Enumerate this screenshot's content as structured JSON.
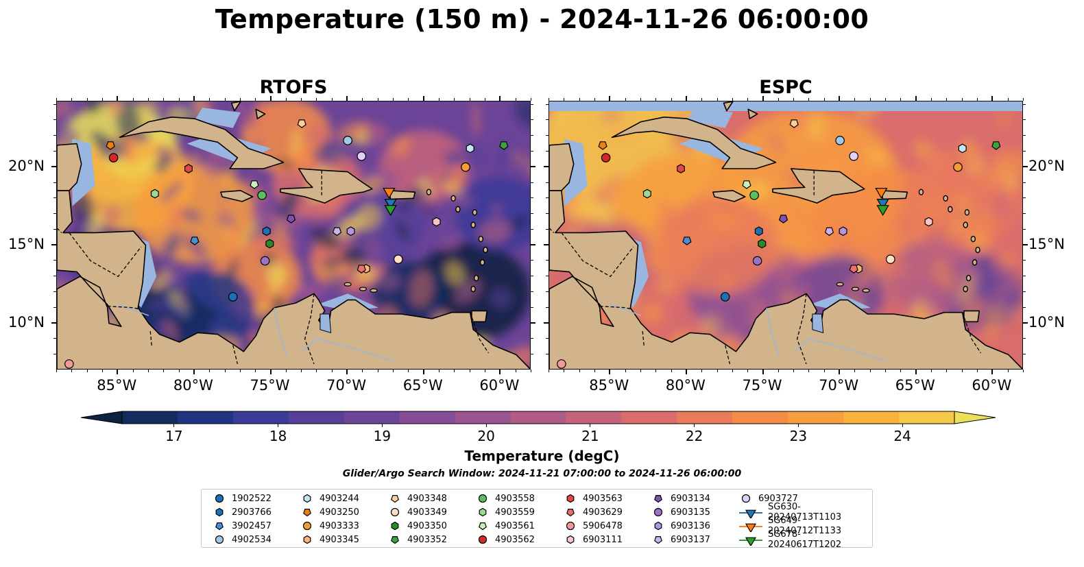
{
  "title": "Temperature (150 m) - 2024-11-26 06:00:00",
  "panels": [
    {
      "id": "rtofs",
      "title": "RTOFS"
    },
    {
      "id": "espc",
      "title": "ESPC"
    }
  ],
  "axes": {
    "lon_range": [
      -89,
      -58
    ],
    "lat_range": [
      7,
      24.2
    ],
    "lon_ticks": [
      "85°W",
      "80°W",
      "75°W",
      "70°W",
      "65°W",
      "60°W"
    ],
    "lon_tick_values": [
      -85,
      -80,
      -75,
      -70,
      -65,
      -60
    ],
    "lat_ticks": [
      "20°N",
      "15°N",
      "10°N"
    ],
    "lat_tick_values": [
      20,
      15,
      10
    ]
  },
  "colorbar": {
    "title": "Temperature (degC)",
    "min": 16.6,
    "max": 24.6,
    "labels": [
      "17",
      "18",
      "19",
      "20",
      "21",
      "22",
      "23",
      "24"
    ],
    "label_values": [
      17,
      18,
      19,
      20,
      21,
      22,
      23,
      24
    ],
    "extend": "both",
    "colors": [
      "#0c2240",
      "#132c5e",
      "#1f3582",
      "#3a3b96",
      "#563e99",
      "#6c4498",
      "#844d96",
      "#9a5591",
      "#b05c88",
      "#c5637a",
      "#d96c6c",
      "#ea7a5c",
      "#f48c48",
      "#f89e3e",
      "#f9b23c",
      "#f5c84a",
      "#eae05a"
    ]
  },
  "search_window": "Glider/Argo Search Window: 2024-11-21 07:00:00 to 2024-11-26 06:00:00",
  "land_color": "#d2b48c",
  "shallow_color": "#98b6e0",
  "legend": [
    {
      "label": "1902522",
      "marker": "circle",
      "color": "#1f6fb4"
    },
    {
      "label": "2903766",
      "marker": "hexagon",
      "color": "#1f6fb4"
    },
    {
      "label": "3902457",
      "marker": "pentagon",
      "color": "#4a90d0"
    },
    {
      "label": "4902534",
      "marker": "circle",
      "color": "#9ecae8"
    },
    {
      "label": "4903244",
      "marker": "hexagon",
      "color": "#c6e4f5"
    },
    {
      "label": "4903250",
      "marker": "pentagon",
      "color": "#f07f12"
    },
    {
      "label": "4903333",
      "marker": "circle",
      "color": "#f59a36"
    },
    {
      "label": "4903345",
      "marker": "hexagon",
      "color": "#f8b874"
    },
    {
      "label": "4903348",
      "marker": "pentagon",
      "color": "#fbcf9a"
    },
    {
      "label": "4903349",
      "marker": "circle",
      "color": "#fde0c2"
    },
    {
      "label": "4903350",
      "marker": "hexagon",
      "color": "#2a8a2a"
    },
    {
      "label": "4903352",
      "marker": "pentagon",
      "color": "#3ea33e"
    },
    {
      "label": "4903558",
      "marker": "circle",
      "color": "#5cbf5c"
    },
    {
      "label": "4903559",
      "marker": "hexagon",
      "color": "#9ad98f"
    },
    {
      "label": "4903561",
      "marker": "pentagon",
      "color": "#c7f0bd"
    },
    {
      "label": "4903562",
      "marker": "circle",
      "color": "#d62728"
    },
    {
      "label": "4903563",
      "marker": "hexagon",
      "color": "#e04848"
    },
    {
      "label": "4903629",
      "marker": "pentagon",
      "color": "#ec6e6e"
    },
    {
      "label": "5906478",
      "marker": "circle",
      "color": "#f29a9a"
    },
    {
      "label": "6903111",
      "marker": "hexagon",
      "color": "#f8c4c4"
    },
    {
      "label": "6903134",
      "marker": "pentagon",
      "color": "#7e52b0"
    },
    {
      "label": "6903135",
      "marker": "circle",
      "color": "#9a72c8"
    },
    {
      "label": "6903136",
      "marker": "hexagon",
      "color": "#b595db"
    },
    {
      "label": "6903137",
      "marker": "pentagon",
      "color": "#cdb2ea"
    },
    {
      "label": "6903727",
      "marker": "circle",
      "color": "#e3d0f7"
    },
    {
      "label": "SG630-20240713T1103",
      "marker": "triangle-line",
      "color": "#1f77b4"
    },
    {
      "label": "SG649-20240712T1133",
      "marker": "triangle-line",
      "color": "#ff7f0e"
    },
    {
      "label": "SG678-20240617T1202",
      "marker": "triangle-line",
      "color": "#2ca02c"
    }
  ],
  "floats": [
    {
      "id": "1902522",
      "lon": -77.5,
      "lat": 11.7
    },
    {
      "id": "2903766",
      "lon": -75.3,
      "lat": 15.9
    },
    {
      "id": "3902457",
      "lon": -80.0,
      "lat": 15.3
    },
    {
      "id": "4902534",
      "lon": -70.0,
      "lat": 21.7
    },
    {
      "id": "4903244",
      "lon": -62.0,
      "lat": 21.2
    },
    {
      "id": "4903250",
      "lon": -85.5,
      "lat": 21.4
    },
    {
      "id": "4903333",
      "lon": -62.3,
      "lat": 20.0
    },
    {
      "id": "4903345",
      "lon": -68.8,
      "lat": 13.5
    },
    {
      "id": "4903348",
      "lon": -73.0,
      "lat": 22.8
    },
    {
      "id": "4903349",
      "lon": -66.7,
      "lat": 14.1
    },
    {
      "id": "4903350",
      "lon": -75.1,
      "lat": 15.1
    },
    {
      "id": "4903352",
      "lon": -59.8,
      "lat": 21.4
    },
    {
      "id": "4903558",
      "lon": -75.6,
      "lat": 18.2
    },
    {
      "id": "4903559",
      "lon": -82.6,
      "lat": 18.3
    },
    {
      "id": "4903561",
      "lon": -76.1,
      "lat": 18.9
    },
    {
      "id": "4903562",
      "lon": -85.3,
      "lat": 20.6
    },
    {
      "id": "4903563",
      "lon": -80.4,
      "lat": 19.9
    },
    {
      "id": "4903629",
      "lon": -69.1,
      "lat": 13.5
    },
    {
      "id": "5906478",
      "lon": -88.2,
      "lat": 7.4
    },
    {
      "id": "6903111",
      "lon": -64.2,
      "lat": 16.5
    },
    {
      "id": "6903134",
      "lon": -73.7,
      "lat": 16.7
    },
    {
      "id": "6903135",
      "lon": -75.4,
      "lat": 14.0
    },
    {
      "id": "6903136",
      "lon": -69.8,
      "lat": 15.9
    },
    {
      "id": "6903137",
      "lon": -70.7,
      "lat": 15.9
    },
    {
      "id": "6903727",
      "lon": -69.1,
      "lat": 20.7
    },
    {
      "id": "SG630-20240713T1103",
      "lon": -67.2,
      "lat": 17.8
    },
    {
      "id": "SG649-20240712T1133",
      "lon": -67.3,
      "lat": 18.5
    },
    {
      "id": "SG678-20240617T1202",
      "lon": -67.2,
      "lat": 17.4
    }
  ]
}
